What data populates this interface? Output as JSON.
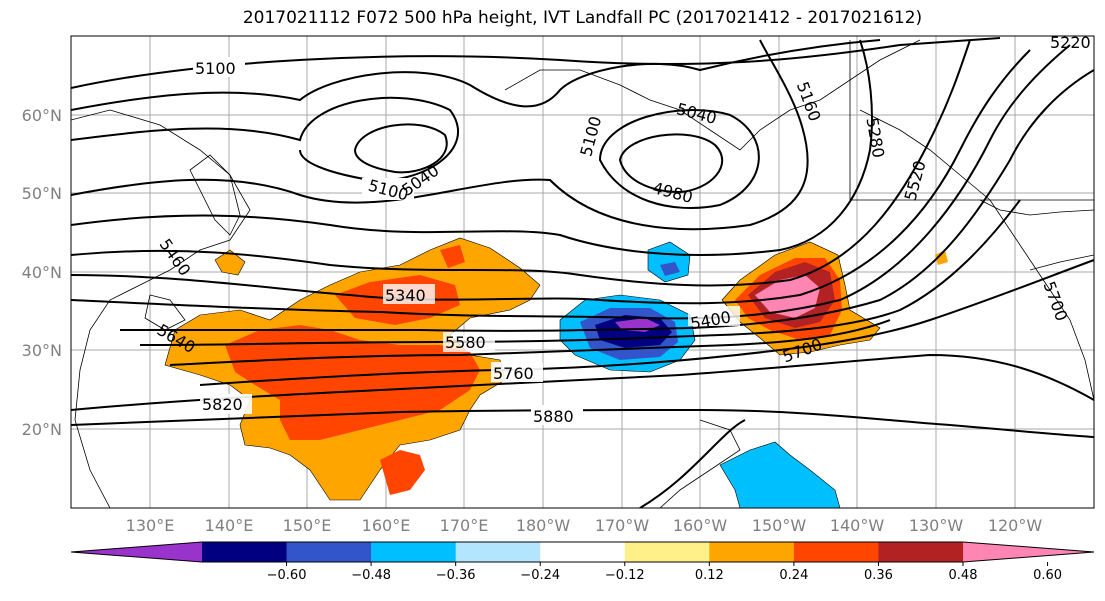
{
  "title": "2017021112 F072 500 hPa height, IVT Landfall PC (2017021412 - 2017021612)",
  "map": {
    "lat_ticks": [
      "20°N",
      "30°N",
      "40°N",
      "50°N",
      "60°N"
    ],
    "lon_ticks": [
      "130°E",
      "140°E",
      "150°E",
      "160°E",
      "170°E",
      "180°W",
      "170°W",
      "160°W",
      "150°W",
      "140°W",
      "130°W",
      "120°W"
    ],
    "grid": true,
    "contour_labels": [
      "5100",
      "5040",
      "5100",
      "5100",
      "5040",
      "4980",
      "5160",
      "5220",
      "5280",
      "5340",
      "5400",
      "5460",
      "5520",
      "5580",
      "5640",
      "5700",
      "5760",
      "5820",
      "5880"
    ]
  },
  "colorbar": {
    "colors": [
      "#9933cc",
      "#000080",
      "#3355cc",
      "#00bfff",
      "#b3e5ff",
      "#ffffff",
      "#fff08a",
      "#ffa500",
      "#ff4500",
      "#b22222",
      "#ff85b3"
    ],
    "tick_labels": [
      "−0.60",
      "−0.48",
      "−0.36",
      "−0.24",
      "−0.12",
      "0.12",
      "0.24",
      "0.36",
      "0.48",
      "0.60"
    ]
  }
}
